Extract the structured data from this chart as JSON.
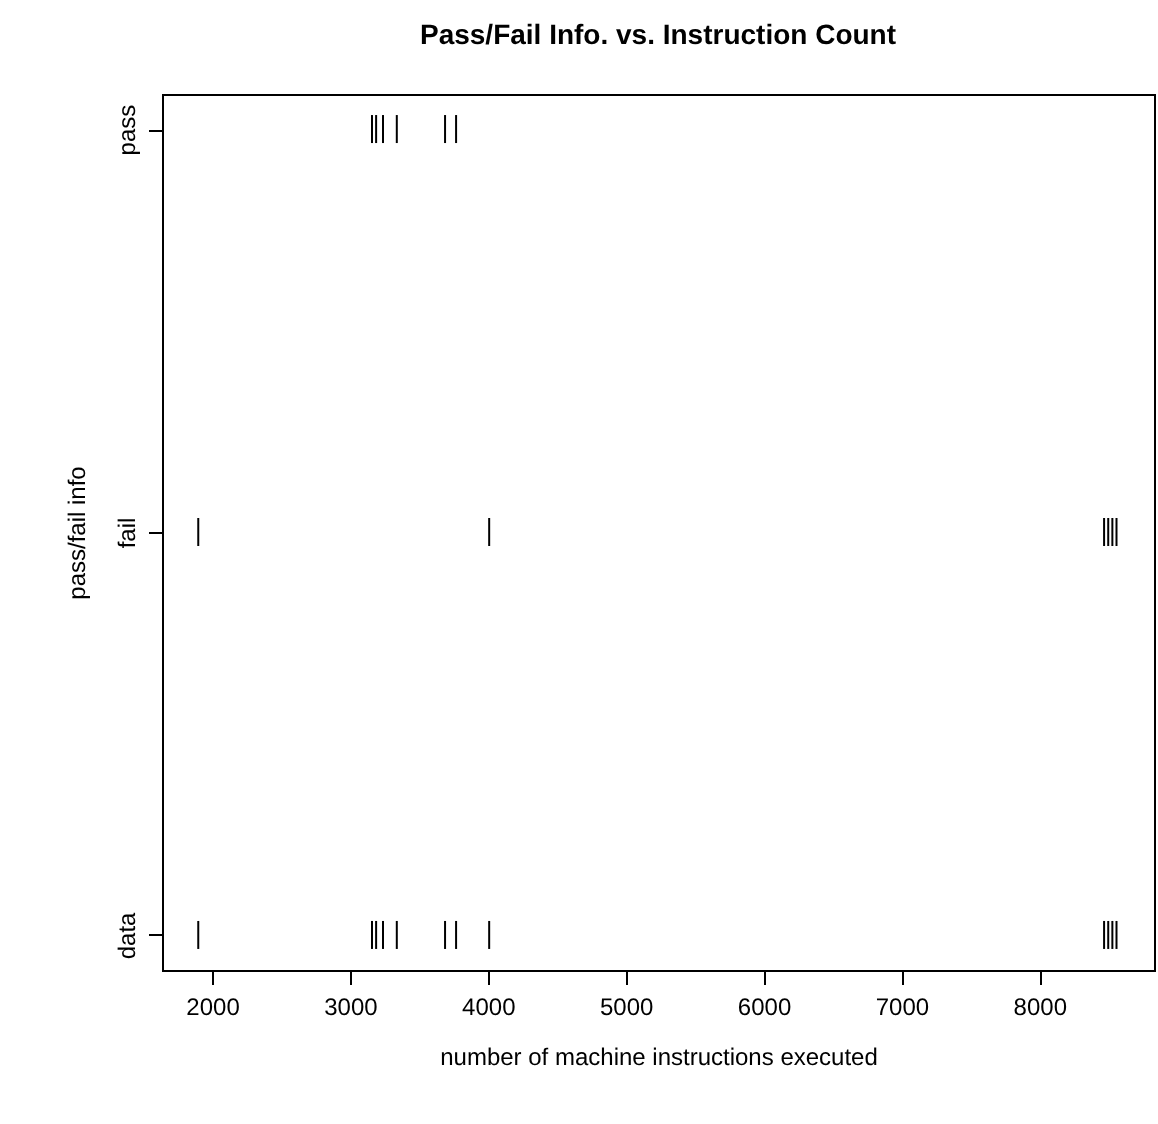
{
  "chart_data": {
    "type": "scatter",
    "orientation": "horizontal",
    "title": "Pass/Fail Info. vs. Instruction Count",
    "xlabel": "number of machine instructions executed",
    "ylabel": "pass/fail info",
    "categories": [
      "pass",
      "fail",
      "data"
    ],
    "series": [
      {
        "color": "#000000",
        "values": [
          3160,
          1900,
          1900
        ]
      },
      {
        "color": "#000000",
        "values": [
          3190,
          4010,
          3160
        ]
      },
      {
        "color": "#000000",
        "values": [
          3240,
          8470,
          3190
        ]
      },
      {
        "color": "#000000",
        "values": [
          3340,
          8500,
          3240
        ]
      },
      {
        "color": "#000000",
        "values": [
          3690,
          8530,
          3340
        ]
      },
      {
        "color": "#000000",
        "values": [
          3770,
          8560,
          3690
        ]
      },
      {
        "color": "#000000",
        "values": [
          null,
          null,
          3770
        ]
      },
      {
        "color": "#000000",
        "values": [
          null,
          null,
          4010
        ]
      },
      {
        "color": "#000000",
        "values": [
          null,
          null,
          8470
        ]
      },
      {
        "color": "#000000",
        "values": [
          null,
          null,
          8500
        ]
      },
      {
        "color": "#000000",
        "values": [
          null,
          null,
          8530
        ]
      },
      {
        "color": "#000000",
        "values": [
          null,
          null,
          8560
        ]
      }
    ],
    "xlim": [
      1637,
      8832
    ],
    "xticks": [
      2000,
      3000,
      4000,
      5000,
      6000,
      7000,
      8000
    ],
    "grid": false
  }
}
